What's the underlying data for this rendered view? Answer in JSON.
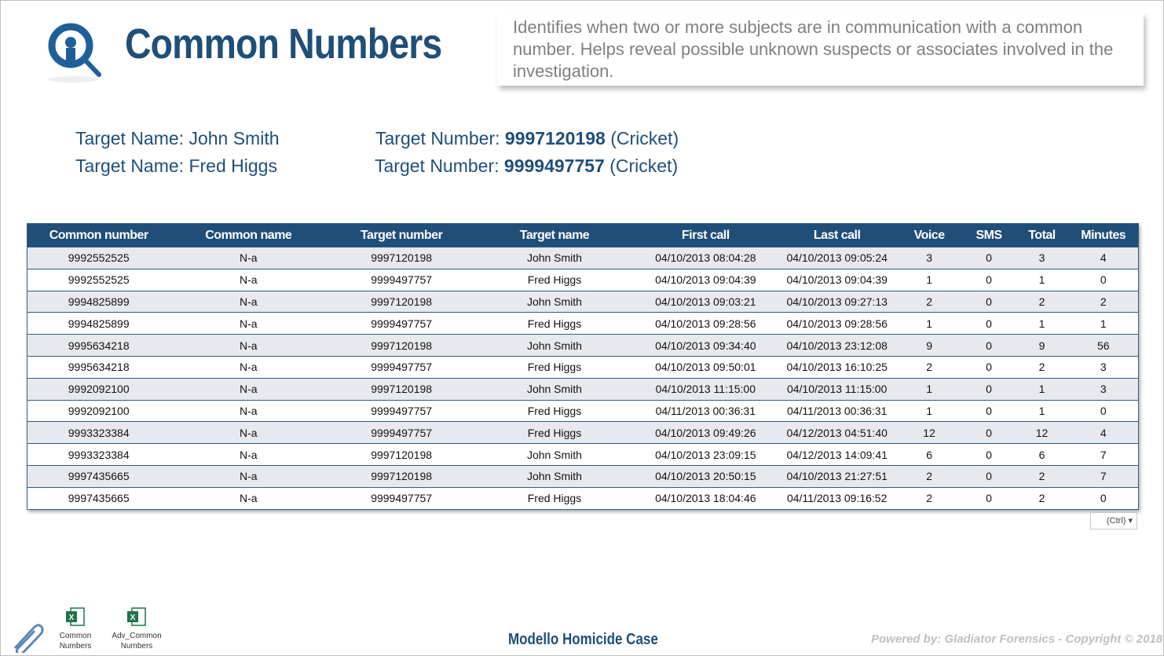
{
  "header": {
    "title": "Common Numbers",
    "description": "Identifies when two or more subjects are in communication with a common number. Helps reveal possible unknown suspects or associates involved in the investigation."
  },
  "targets": [
    {
      "name_label": "Target Name:",
      "name": "John Smith",
      "number_label": "Target Number:",
      "number": "9997120198",
      "carrier": "(Cricket)"
    },
    {
      "name_label": "Target Name:",
      "name": "Fred Higgs",
      "number_label": "Target Number:",
      "number": "9999497757",
      "carrier": "(Cricket)"
    }
  ],
  "table": {
    "columns": [
      "Common number",
      "Common name",
      "Target number",
      "Target name",
      "First call",
      "Last call",
      "Voice",
      "SMS",
      "Total",
      "Minutes"
    ],
    "rows": [
      [
        "9992552525",
        "N-a",
        "9997120198",
        "John Smith",
        "04/10/2013 08:04:28",
        "04/10/2013 09:05:24",
        3,
        0,
        3,
        4
      ],
      [
        "9992552525",
        "N-a",
        "9999497757",
        "Fred Higgs",
        "04/10/2013 09:04:39",
        "04/10/2013 09:04:39",
        1,
        0,
        1,
        0
      ],
      [
        "9994825899",
        "N-a",
        "9997120198",
        "John Smith",
        "04/10/2013 09:03:21",
        "04/10/2013 09:27:13",
        2,
        0,
        2,
        2
      ],
      [
        "9994825899",
        "N-a",
        "9999497757",
        "Fred Higgs",
        "04/10/2013 09:28:56",
        "04/10/2013 09:28:56",
        1,
        0,
        1,
        1
      ],
      [
        "9995634218",
        "N-a",
        "9997120198",
        "John Smith",
        "04/10/2013 09:34:40",
        "04/10/2013 23:12:08",
        9,
        0,
        9,
        56
      ],
      [
        "9995634218",
        "N-a",
        "9999497757",
        "Fred Higgs",
        "04/10/2013 09:50:01",
        "04/10/2013 16:10:25",
        2,
        0,
        2,
        3
      ],
      [
        "9992092100",
        "N-a",
        "9997120198",
        "John Smith",
        "04/10/2013 11:15:00",
        "04/10/2013 11:15:00",
        1,
        0,
        1,
        3
      ],
      [
        "9992092100",
        "N-a",
        "9999497757",
        "Fred Higgs",
        "04/11/2013 00:36:31",
        "04/11/2013 00:36:31",
        1,
        0,
        1,
        0
      ],
      [
        "9993323384",
        "N-a",
        "9999497757",
        "Fred Higgs",
        "04/10/2013 09:49:26",
        "04/12/2013 04:51:40",
        12,
        0,
        12,
        4
      ],
      [
        "9993323384",
        "N-a",
        "9997120198",
        "John Smith",
        "04/10/2013 23:09:15",
        "04/12/2013 14:09:41",
        6,
        0,
        6,
        7
      ],
      [
        "9997435665",
        "N-a",
        "9997120198",
        "John Smith",
        "04/10/2013 20:50:15",
        "04/10/2013 21:27:51",
        2,
        0,
        2,
        7
      ],
      [
        "9997435665",
        "N-a",
        "9999497757",
        "Fred Higgs",
        "04/10/2013 18:04:46",
        "04/11/2013 09:16:52",
        2,
        0,
        2,
        0
      ]
    ]
  },
  "paste_button": "(Ctrl)",
  "attachments": [
    "Common Numbers",
    "Adv_Common Numbers"
  ],
  "footer": {
    "case": "Modello Homicide Case",
    "copyright": "Powered by: Gladiator Forensics - Copyright © 2018"
  }
}
